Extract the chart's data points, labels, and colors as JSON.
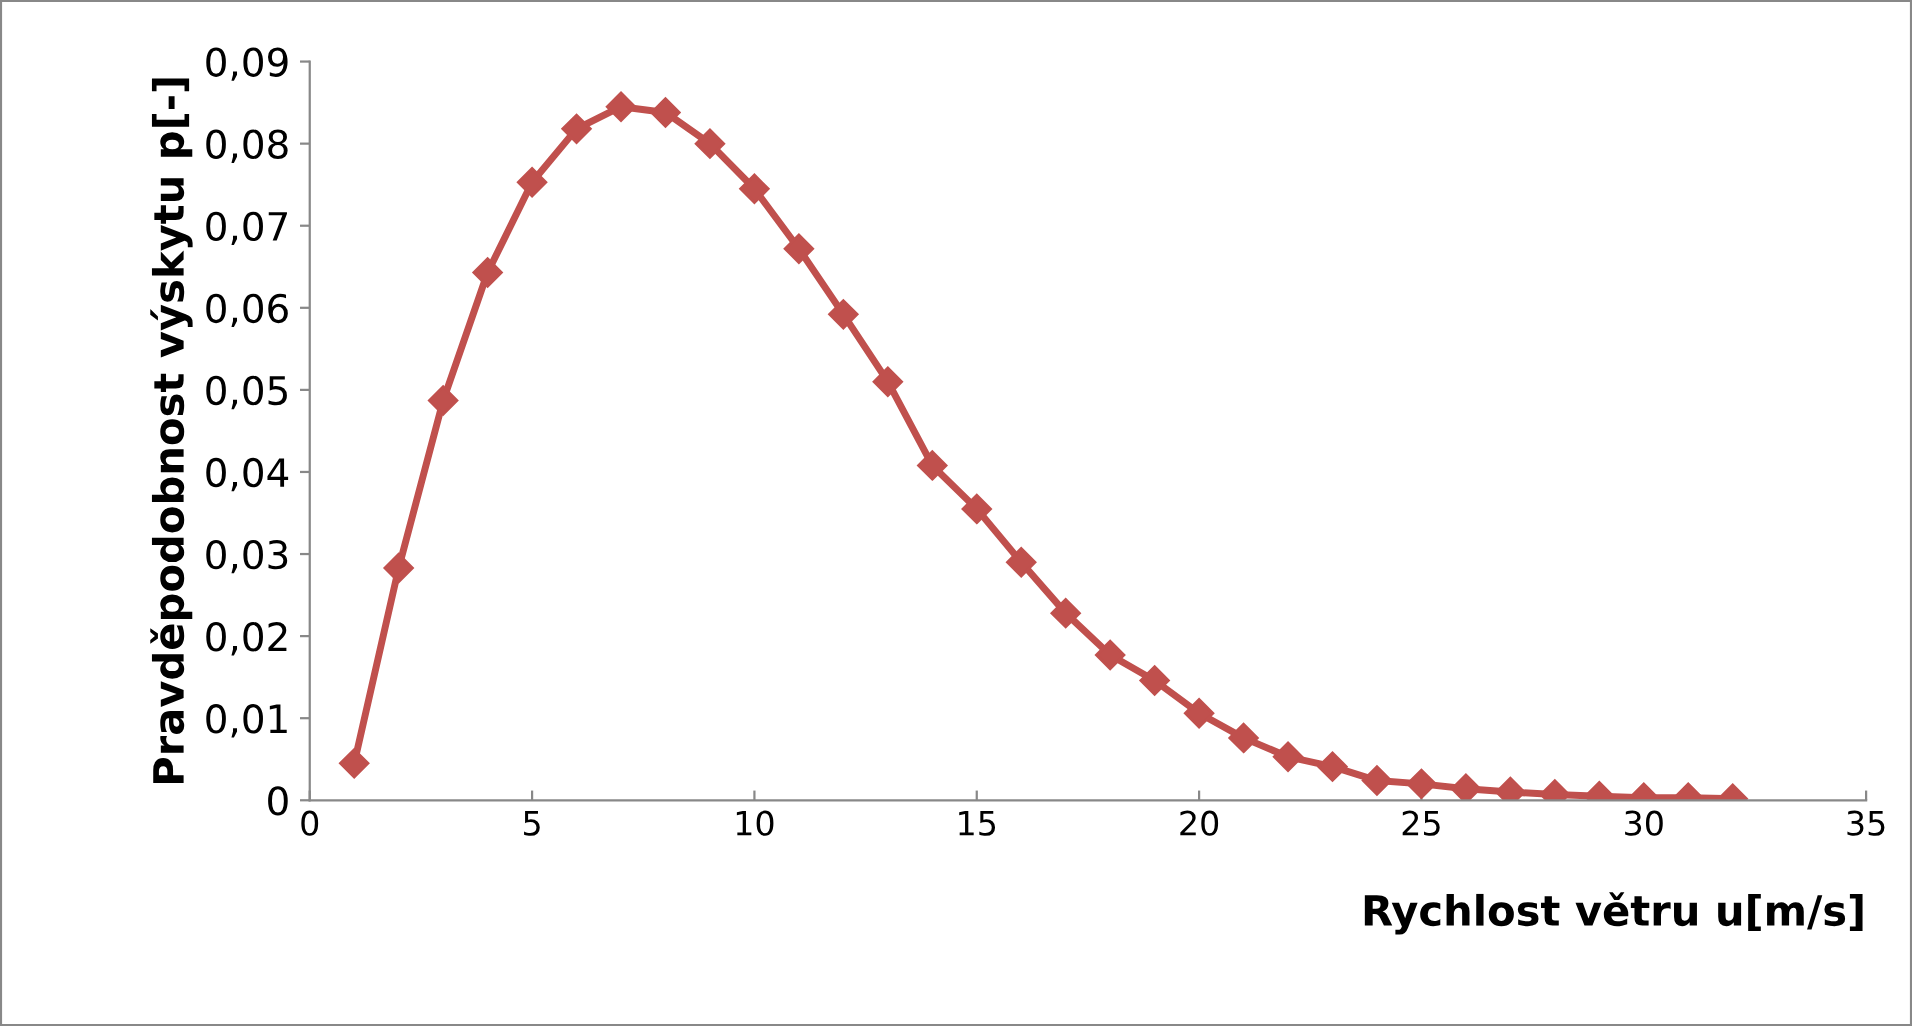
{
  "chart_data": {
    "type": "line",
    "xlabel": "Rychlost větru u[m/s]",
    "ylabel": "Pravděpodobnost výskytu p[-]",
    "x": [
      1,
      2,
      3,
      4,
      5,
      6,
      7,
      8,
      9,
      10,
      11,
      12,
      13,
      14,
      15,
      16,
      17,
      18,
      19,
      20,
      21,
      22,
      23,
      24,
      25,
      26,
      27,
      28,
      29,
      30,
      31,
      32
    ],
    "series": [
      {
        "color": "#c0504d",
        "values": [
          0.0045,
          0.0283,
          0.0487,
          0.0643,
          0.0753,
          0.0818,
          0.0845,
          0.0838,
          0.08,
          0.0745,
          0.0672,
          0.0592,
          0.051,
          0.0408,
          0.0355,
          0.029,
          0.0228,
          0.0177,
          0.0146,
          0.0106,
          0.0076,
          0.0053,
          0.0041,
          0.0024,
          0.002,
          0.0014,
          0.001,
          0.0007,
          0.0005,
          0.0003,
          0.0003,
          0.0002
        ]
      }
    ],
    "xlim": [
      0,
      35
    ],
    "xticks": [
      0,
      5,
      10,
      15,
      20,
      25,
      30,
      35
    ],
    "ylim": [
      0,
      0.09
    ],
    "yticks": [
      0,
      {
        "value": 0.01,
        "label": "0,01"
      },
      {
        "value": 0.02,
        "label": "0,02"
      },
      {
        "value": 0.03,
        "label": "0,03"
      },
      {
        "value": 0.04,
        "label": "0,04"
      },
      {
        "value": 0.05,
        "label": "0,05"
      },
      {
        "value": 0.06,
        "label": "0,06"
      },
      {
        "value": 0.07,
        "label": "0,07"
      },
      {
        "value": 0.08,
        "label": "0,08"
      },
      {
        "value": 0.09,
        "label": "0,09"
      }
    ],
    "marker": "diamond",
    "line_style": "solid",
    "grid": false,
    "legend": false
  }
}
